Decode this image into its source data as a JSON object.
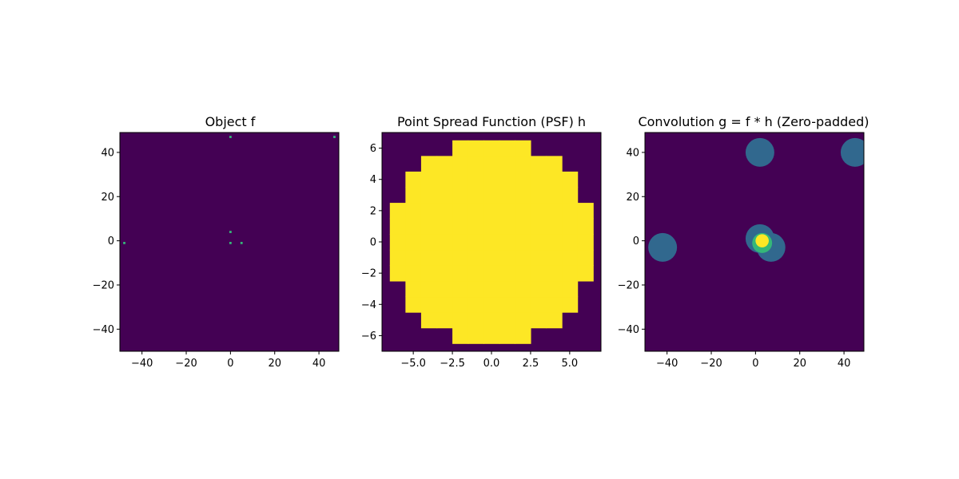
{
  "chart_data": [
    {
      "type": "heatmap",
      "title": "Object f",
      "xlabel": "",
      "ylabel": "",
      "xlim": [
        -50,
        49
      ],
      "ylim": [
        -50,
        49
      ],
      "xticks": [
        -40,
        -20,
        0,
        20,
        40
      ],
      "yticks": [
        40,
        20,
        0,
        -20,
        -40
      ],
      "colormap": "viridis",
      "background": "#440154",
      "points": [
        {
          "x": 0,
          "y": 47,
          "color": "#35b779"
        },
        {
          "x": 47,
          "y": 47,
          "color": "#35b779"
        },
        {
          "x": 0,
          "y": 4,
          "color": "#35b779"
        },
        {
          "x": -48,
          "y": -1,
          "color": "#35b779"
        },
        {
          "x": 0,
          "y": -1,
          "color": "#35b779"
        },
        {
          "x": 5,
          "y": -1,
          "color": "#35b779"
        }
      ]
    },
    {
      "type": "heatmap",
      "title": "Point Spread Function (PSF) h",
      "xlabel": "",
      "ylabel": "",
      "xlim": [
        -7,
        7
      ],
      "ylim": [
        -7,
        7
      ],
      "xticks": [
        -5.0,
        -2.5,
        0.0,
        2.5,
        5.0
      ],
      "yticks": [
        6,
        4,
        2,
        0,
        -2,
        -4,
        -6
      ],
      "colormap": "viridis",
      "background": "#440154",
      "fill_color": "#fde725",
      "disk": {
        "center": [
          0,
          0
        ],
        "radius": 6.5
      }
    },
    {
      "type": "heatmap",
      "title": "Convolution g = f * h (Zero-padded)",
      "xlabel": "",
      "ylabel": "",
      "xlim": [
        -50,
        49
      ],
      "ylim": [
        -50,
        49
      ],
      "xticks": [
        -40,
        -20,
        0,
        20,
        40
      ],
      "yticks": [
        40,
        20,
        0,
        -20,
        -40
      ],
      "colormap": "viridis",
      "background": "#440154",
      "blobs": [
        {
          "x": 2,
          "y": 40,
          "r": 6.5,
          "color": "#31688e"
        },
        {
          "x": 45,
          "y": 40,
          "r": 6.5,
          "color": "#31688e"
        },
        {
          "x": -42,
          "y": -3,
          "r": 6.5,
          "color": "#31688e"
        },
        {
          "x": 7,
          "y": -3,
          "r": 6.5,
          "color": "#31688e"
        },
        {
          "x": 2,
          "y": 1,
          "r": 6.5,
          "color": "#31688e"
        },
        {
          "x": 3,
          "y": -1,
          "r": 4.5,
          "color": "#35b779"
        },
        {
          "x": 3,
          "y": 0,
          "r": 3,
          "color": "#fde725"
        }
      ]
    }
  ]
}
